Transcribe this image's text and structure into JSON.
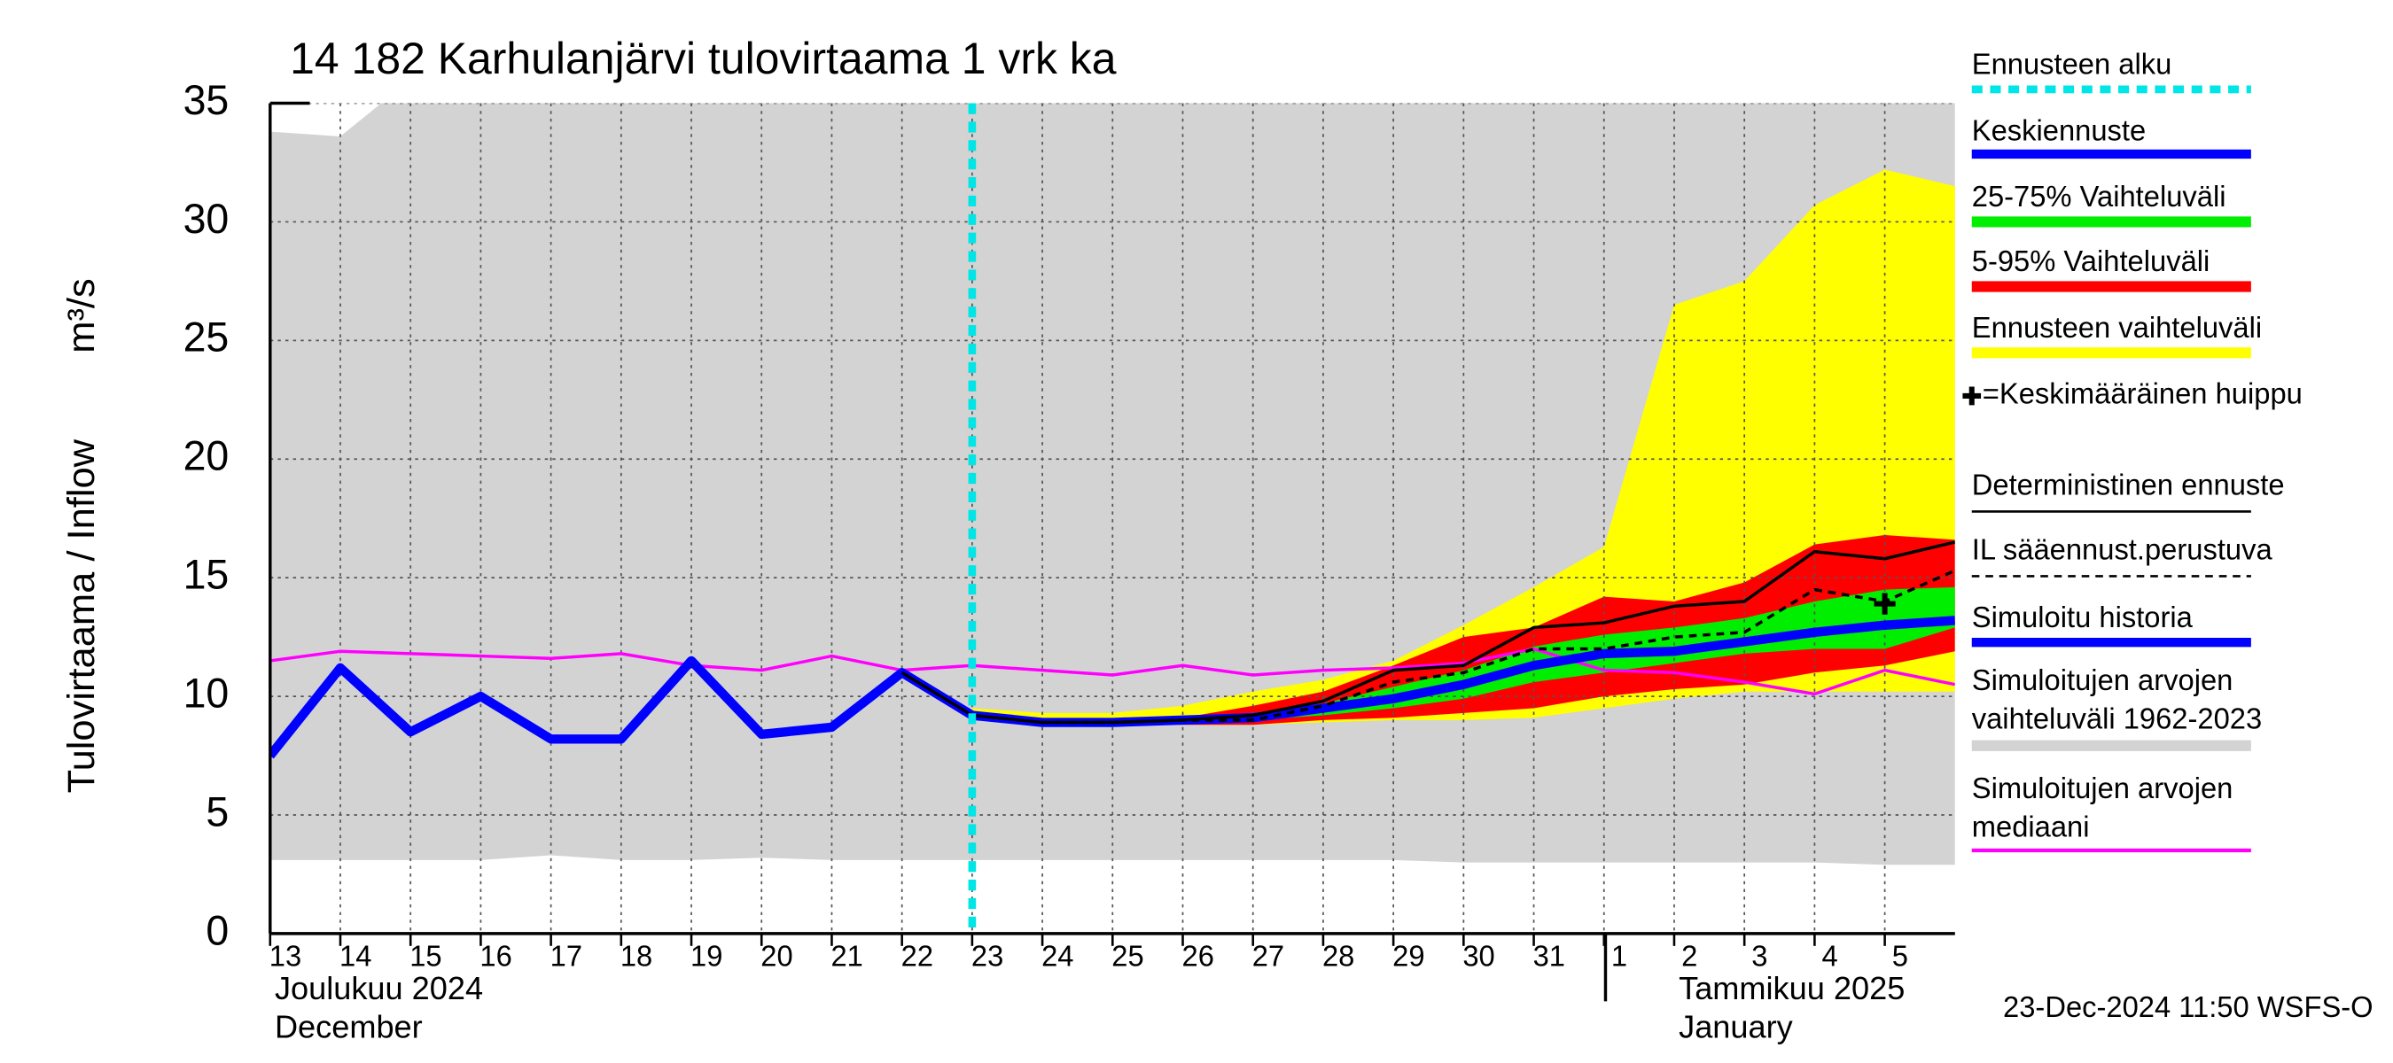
{
  "chart_data": {
    "type": "line",
    "title": "14 182 Karhulanjärvi tulovirtaama 1 vrk ka",
    "y_label": "Tulovirtaama / Inflow",
    "y_unit": "m³/s",
    "months": [
      {
        "fi": "Joulukuu  2024",
        "en": "December"
      },
      {
        "fi": "Tammikuu  2025",
        "en": "January"
      }
    ],
    "footer": "23-Dec-2024 11:50 WSFS-O",
    "x": [
      "2024-12-13",
      "2024-12-14",
      "2024-12-15",
      "2024-12-16",
      "2024-12-17",
      "2024-12-18",
      "2024-12-19",
      "2024-12-20",
      "2024-12-21",
      "2024-12-22",
      "2024-12-23",
      "2024-12-24",
      "2024-12-25",
      "2024-12-26",
      "2024-12-27",
      "2024-12-28",
      "2024-12-29",
      "2024-12-30",
      "2024-12-31",
      "2025-01-01",
      "2025-01-02",
      "2025-01-03",
      "2025-01-04",
      "2025-01-05",
      "2025-01-06"
    ],
    "xlim": [
      "2024-12-13",
      "2025-01-06"
    ],
    "xticks": [
      {
        "value": "2024-12-13",
        "label": "13"
      },
      {
        "value": "2024-12-14",
        "label": "14"
      },
      {
        "value": "2024-12-15",
        "label": "15"
      },
      {
        "value": "2024-12-16",
        "label": "16"
      },
      {
        "value": "2024-12-17",
        "label": "17"
      },
      {
        "value": "2024-12-18",
        "label": "18"
      },
      {
        "value": "2024-12-19",
        "label": "19"
      },
      {
        "value": "2024-12-20",
        "label": "20"
      },
      {
        "value": "2024-12-21",
        "label": "21"
      },
      {
        "value": "2024-12-22",
        "label": "22"
      },
      {
        "value": "2024-12-23",
        "label": "23"
      },
      {
        "value": "2024-12-24",
        "label": "24"
      },
      {
        "value": "2024-12-25",
        "label": "25"
      },
      {
        "value": "2024-12-26",
        "label": "26"
      },
      {
        "value": "2024-12-27",
        "label": "27"
      },
      {
        "value": "2024-12-28",
        "label": "28"
      },
      {
        "value": "2024-12-29",
        "label": "29"
      },
      {
        "value": "2024-12-30",
        "label": "30"
      },
      {
        "value": "2024-12-31",
        "label": "31"
      },
      {
        "value": "2025-01-01",
        "label": "1"
      },
      {
        "value": "2025-01-02",
        "label": "2"
      },
      {
        "value": "2025-01-03",
        "label": "3"
      },
      {
        "value": "2025-01-04",
        "label": "4"
      },
      {
        "value": "2025-01-05",
        "label": "5"
      }
    ],
    "ylim": [
      0,
      35
    ],
    "yticks": [
      0,
      5,
      10,
      15,
      20,
      25,
      30,
      35
    ],
    "grid": true,
    "forecast_start": {
      "name": "Ennusteen alku",
      "x": "2024-12-23",
      "color": "#00e5e5"
    },
    "mean_peak": {
      "name": "=Keskimääräinen huippu",
      "x": "2025-01-05",
      "value": 13.9,
      "color": "#000000"
    },
    "series": [
      {
        "name": "Simuloitujen arvojen vaihteluväli 1962-2023",
        "kind": "band",
        "color": "#d3d3d3",
        "upper": [
          33.8,
          33.6,
          36,
          36,
          36,
          36,
          36,
          36,
          36,
          36,
          36,
          36,
          36,
          36,
          36,
          36,
          36,
          36,
          36,
          36,
          36,
          36,
          36,
          36,
          36
        ],
        "lower": [
          3.1,
          3.1,
          3.1,
          3.1,
          3.3,
          3.1,
          3.1,
          3.2,
          3.1,
          3.1,
          3.1,
          3.1,
          3.1,
          3.1,
          3.1,
          3.1,
          3.1,
          3.0,
          3.0,
          3.0,
          3.0,
          3.0,
          3.0,
          2.9,
          2.9
        ]
      },
      {
        "name": "Ennusteen vaihteluväli",
        "kind": "band",
        "color": "#ffff00",
        "upper": [
          null,
          null,
          null,
          null,
          null,
          null,
          null,
          null,
          null,
          null,
          9.5,
          9.3,
          9.3,
          9.6,
          10.2,
          10.7,
          11.5,
          13.0,
          14.6,
          16.3,
          26.5,
          27.5,
          30.7,
          32.2,
          31.5
        ],
        "lower": [
          null,
          null,
          null,
          null,
          null,
          null,
          null,
          null,
          null,
          null,
          9.2,
          8.8,
          8.8,
          8.8,
          8.8,
          8.9,
          9.0,
          9.0,
          9.1,
          9.5,
          9.9,
          10.2,
          10.2,
          10.2,
          10.2
        ]
      },
      {
        "name": "5-95% Vaihteluväli",
        "kind": "band",
        "color": "#ff0000",
        "upper": [
          null,
          null,
          null,
          null,
          null,
          null,
          null,
          null,
          null,
          null,
          9.3,
          9.0,
          9.0,
          9.1,
          9.6,
          10.2,
          11.3,
          12.5,
          12.9,
          14.2,
          14.0,
          14.8,
          16.4,
          16.8,
          16.6
        ],
        "lower": [
          null,
          null,
          null,
          null,
          null,
          null,
          null,
          null,
          null,
          null,
          9.2,
          8.9,
          8.9,
          8.8,
          8.8,
          9.0,
          9.1,
          9.3,
          9.5,
          10.0,
          10.3,
          10.5,
          11.0,
          11.3,
          11.9
        ]
      },
      {
        "name": "25-75% Vaihteluväli",
        "kind": "band",
        "color": "#00ee00",
        "upper": [
          null,
          null,
          null,
          null,
          null,
          null,
          null,
          null,
          null,
          null,
          9.2,
          8.9,
          8.9,
          9.0,
          9.3,
          9.7,
          10.4,
          11.1,
          12.1,
          12.6,
          12.9,
          13.3,
          14.0,
          14.5,
          14.6
        ],
        "lower": [
          null,
          null,
          null,
          null,
          null,
          null,
          null,
          null,
          null,
          null,
          9.2,
          8.9,
          8.9,
          8.9,
          9.0,
          9.2,
          9.5,
          9.9,
          10.6,
          11.0,
          11.4,
          11.8,
          12.0,
          12.0,
          12.9
        ]
      },
      {
        "name": "Simuloitujen arvojen mediaani",
        "kind": "line",
        "color": "#ff00ff",
        "values": [
          11.5,
          11.9,
          11.8,
          11.7,
          11.6,
          11.8,
          11.3,
          11.1,
          11.7,
          11.1,
          11.3,
          11.1,
          10.9,
          11.3,
          10.9,
          11.1,
          11.2,
          11.4,
          12.0,
          11.1,
          11.0,
          10.6,
          10.1,
          11.1,
          10.5
        ]
      },
      {
        "name": "Simuloitu historia",
        "kind": "line",
        "color": "#0000ff",
        "thick": true,
        "values": [
          7.5,
          11.2,
          8.5,
          10,
          8.2,
          8.2,
          11.5,
          8.4,
          8.7,
          11,
          9.2,
          null,
          null,
          null,
          null,
          null,
          null,
          null,
          null,
          null,
          null,
          null,
          null,
          null,
          null
        ]
      },
      {
        "name": "Keskiennuste",
        "kind": "line",
        "color": "#0000ff",
        "thick": true,
        "values": [
          null,
          null,
          null,
          null,
          null,
          null,
          null,
          null,
          null,
          null,
          9.2,
          8.9,
          8.9,
          9.0,
          9.1,
          9.5,
          9.9,
          10.5,
          11.3,
          11.8,
          11.9,
          12.3,
          12.7,
          13.0,
          13.2
        ]
      },
      {
        "name": "Deterministinen ennuste",
        "kind": "line",
        "color": "#000000",
        "values": [
          null,
          null,
          null,
          null,
          null,
          null,
          null,
          null,
          null,
          11.0,
          9.2,
          8.9,
          8.9,
          9.0,
          9.2,
          9.8,
          11.1,
          11.3,
          12.9,
          13.1,
          13.8,
          14.0,
          16.1,
          15.8,
          16.5
        ]
      },
      {
        "name": "IL sääennust.perustuva",
        "kind": "line",
        "color": "#000000",
        "dashed": true,
        "values": [
          null,
          null,
          null,
          null,
          null,
          null,
          null,
          null,
          null,
          null,
          9.2,
          8.9,
          8.9,
          9.0,
          9.0,
          9.6,
          10.6,
          11.0,
          12.0,
          12.0,
          12.5,
          12.7,
          14.5,
          14.0,
          15.3
        ]
      }
    ]
  }
}
